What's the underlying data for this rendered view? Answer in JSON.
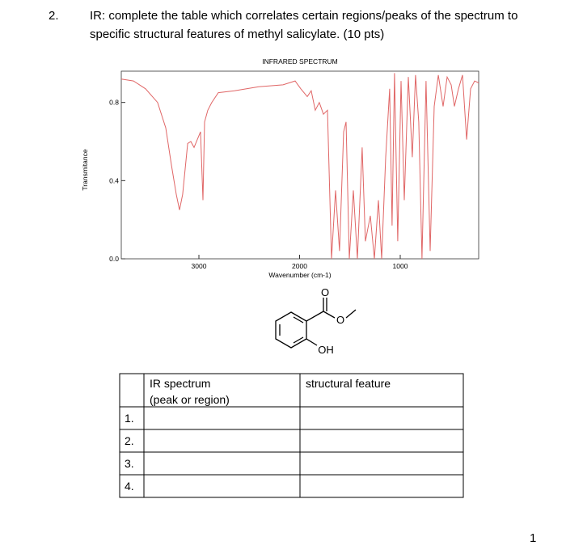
{
  "question": {
    "number": "2.",
    "lines": [
      "IR: complete the table which correlates certain regions/peaks of the spectrum to",
      "specific structural features of methyl salicylate. (10 pts)"
    ]
  },
  "chart_data": {
    "type": "line",
    "title": "INFRARED SPECTRUM",
    "x_label": "Wavenumber (cm-1)",
    "y_label": "Transmitance",
    "color": "#e06666",
    "x": [
      3771,
      3650,
      3530,
      3410,
      3329,
      3273,
      3225,
      3193,
      3161,
      3112,
      3080,
      3048,
      3016,
      2984,
      2960,
      2944,
      2912,
      2872,
      2807,
      2647,
      2406,
      2165,
      2044,
      1988,
      1924,
      1884,
      1844,
      1804,
      1763,
      1723,
      1683,
      1643,
      1603,
      1562,
      1538,
      1506,
      1466,
      1426,
      1378,
      1346,
      1297,
      1257,
      1217,
      1185,
      1145,
      1105,
      1081,
      1057,
      1025,
      992,
      960,
      920,
      880,
      848,
      816,
      784,
      744,
      703,
      663,
      622,
      574,
      534,
      494,
      462,
      422,
      382,
      341,
      301,
      261,
      221
    ],
    "values": [
      0.92,
      0.91,
      0.87,
      0.8,
      0.67,
      0.48,
      0.33,
      0.25,
      0.33,
      0.59,
      0.6,
      0.57,
      0.61,
      0.65,
      0.3,
      0.7,
      0.76,
      0.8,
      0.85,
      0.86,
      0.88,
      0.89,
      0.91,
      0.87,
      0.83,
      0.86,
      0.76,
      0.8,
      0.74,
      0.76,
      0.0,
      0.35,
      0.04,
      0.65,
      0.7,
      0.0,
      0.35,
      0.0,
      0.57,
      0.09,
      0.22,
      0.0,
      0.3,
      0.0,
      0.52,
      0.87,
      0.17,
      0.95,
      0.09,
      0.91,
      0.3,
      0.93,
      0.52,
      0.94,
      0.7,
      0.0,
      0.91,
      0.04,
      0.78,
      0.94,
      0.78,
      0.93,
      0.89,
      0.78,
      0.87,
      0.94,
      0.61,
      0.87,
      0.91,
      0.9
    ],
    "xlim": [
      3771,
      221
    ],
    "ylim": [
      0,
      0.96
    ],
    "xticks": [
      3000,
      2000,
      1000
    ],
    "yticks": [
      {
        "value": 0,
        "label": "0.0"
      },
      0.4,
      0.8
    ]
  },
  "molecule": {
    "carbonyl_o": "O",
    "ester_o": "O",
    "hydroxyl": "OH"
  },
  "table": {
    "header": [
      [
        "IR spectrum",
        "(peak or region)"
      ],
      "structural feature"
    ],
    "rows": [
      "1.",
      "2.",
      "3.",
      "4."
    ]
  },
  "page_number": "1"
}
